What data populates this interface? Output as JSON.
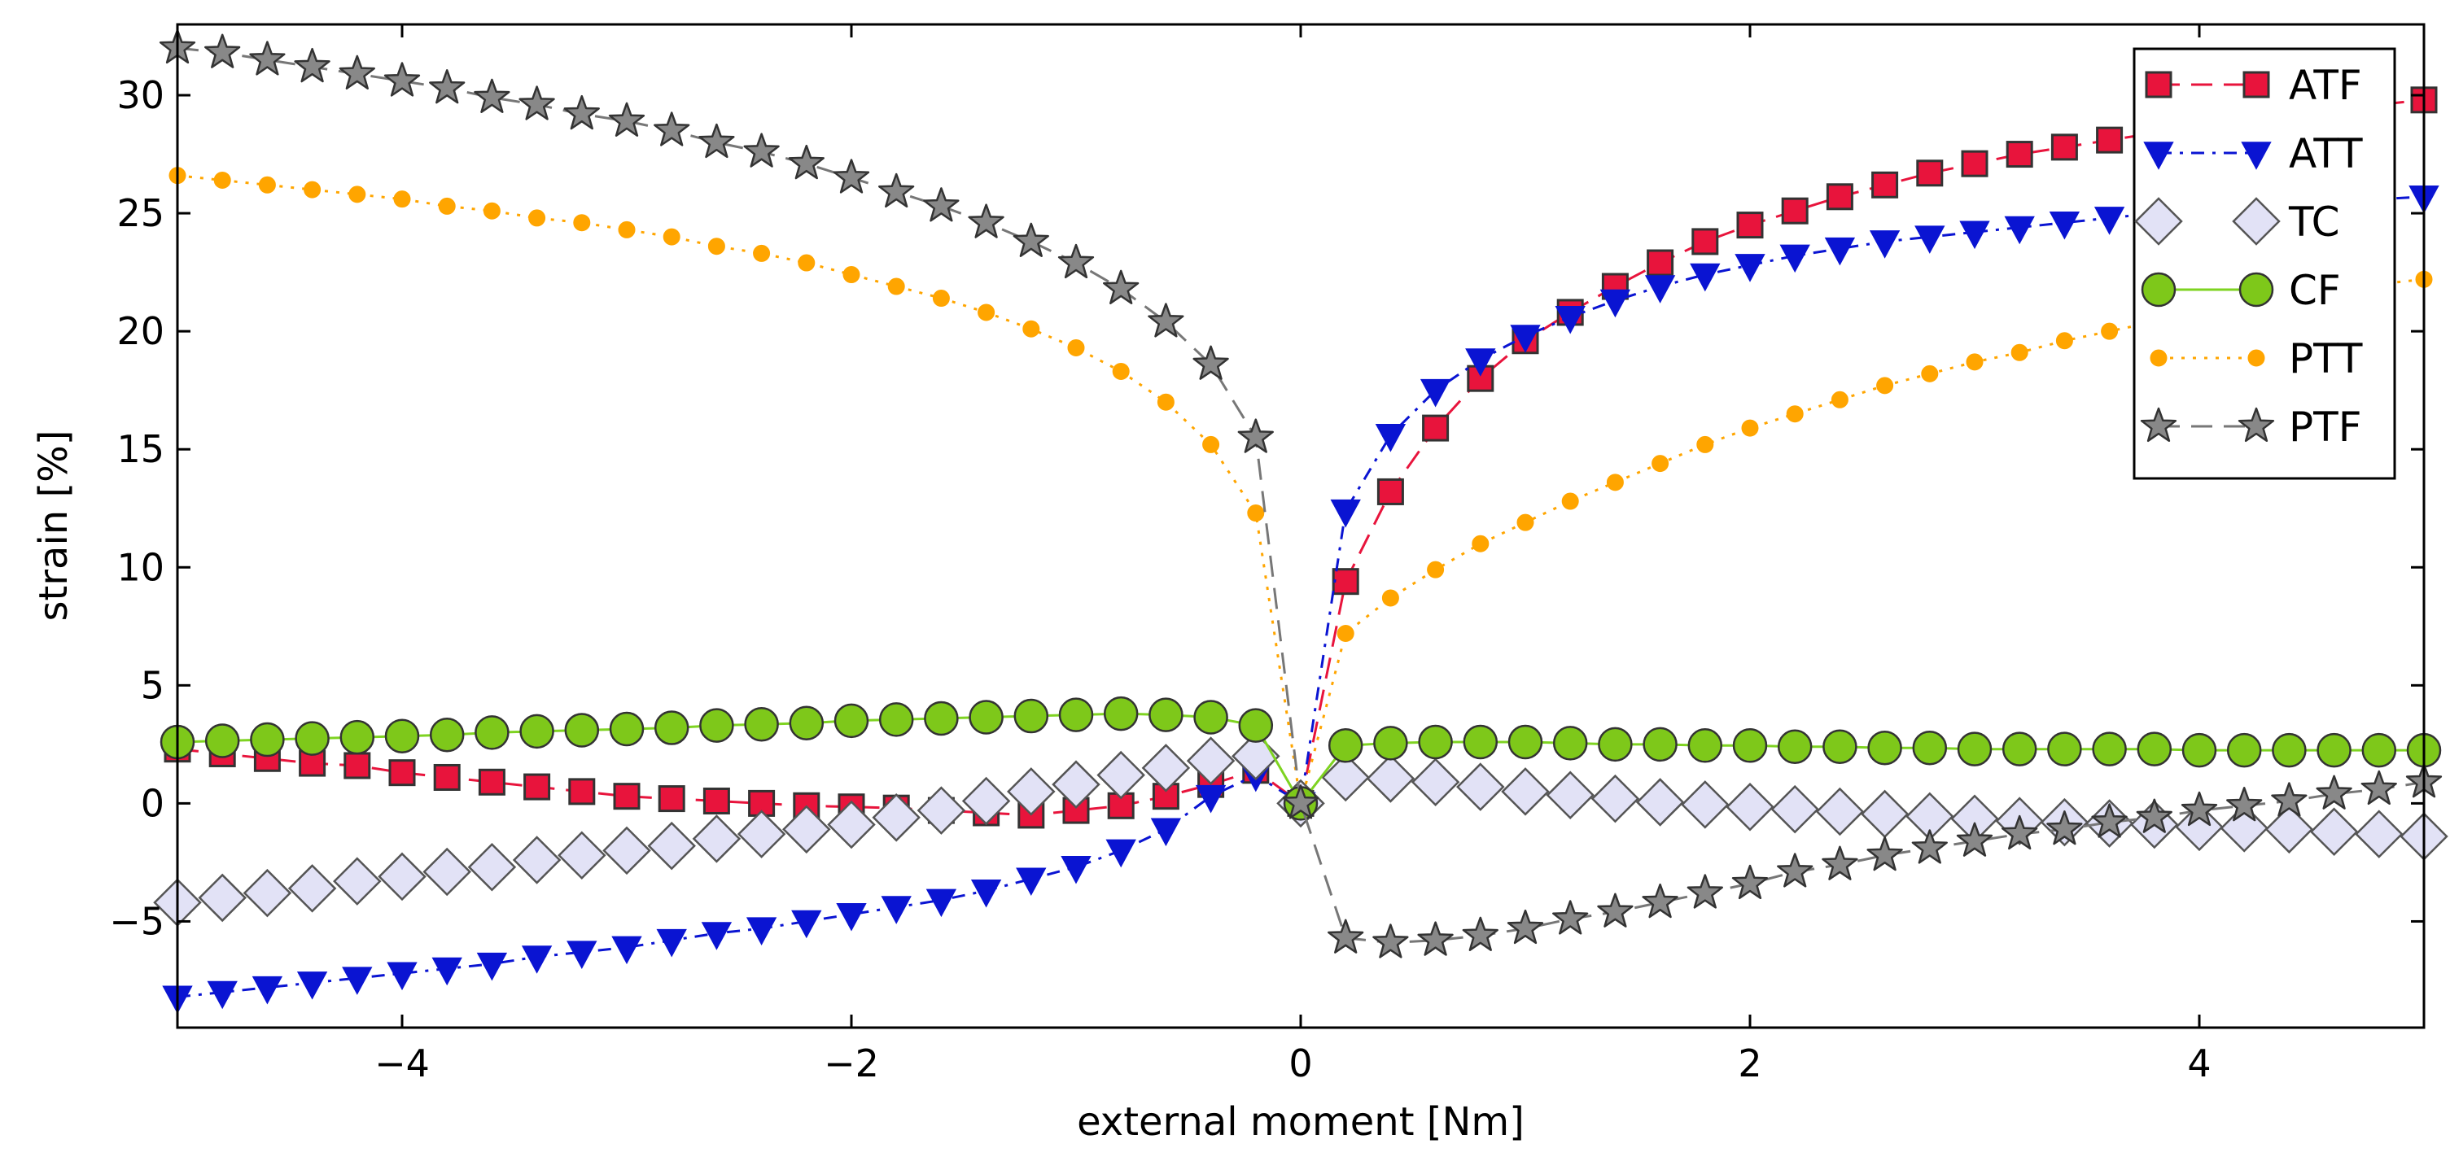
{
  "chart_data": {
    "type": "line",
    "title": "",
    "xlabel": "external moment [Nm]",
    "ylabel": "strain [%]",
    "xlim": [
      -5,
      5
    ],
    "ylim": [
      -9.5,
      33
    ],
    "x_ticks": [
      -4,
      -2,
      0,
      2,
      4
    ],
    "y_ticks": [
      -5,
      0,
      5,
      10,
      15,
      20,
      25,
      30
    ],
    "x_tick_labels": [
      "−4",
      "−2",
      "0",
      "2",
      "4"
    ],
    "y_tick_labels": [
      "−5",
      "0",
      "5",
      "10",
      "15",
      "20",
      "25",
      "30"
    ],
    "grid": false,
    "legend_position": "top-right",
    "x": [
      -5.0,
      -4.8,
      -4.6,
      -4.4,
      -4.2,
      -4.0,
      -3.8,
      -3.6,
      -3.4,
      -3.2,
      -3.0,
      -2.8,
      -2.6,
      -2.4,
      -2.2,
      -2.0,
      -1.8,
      -1.6,
      -1.4,
      -1.2,
      -1.0,
      -0.8,
      -0.6,
      -0.4,
      -0.2,
      0.0,
      0.2,
      0.4,
      0.6,
      0.8,
      1.0,
      1.2,
      1.4,
      1.6,
      1.8,
      2.0,
      2.2,
      2.4,
      2.6,
      2.8,
      3.0,
      3.2,
      3.4,
      3.6,
      3.8,
      4.0,
      4.2,
      4.4,
      4.6,
      4.8,
      5.0
    ],
    "series": [
      {
        "name": "ATF",
        "marker": "square",
        "line_style": "dashed",
        "line_color": "#e8143c",
        "marker_fill": "#e8143c",
        "marker_edge": "#333333",
        "values": [
          2.3,
          2.1,
          1.9,
          1.7,
          1.6,
          1.3,
          1.1,
          0.9,
          0.7,
          0.5,
          0.3,
          0.2,
          0.1,
          0.0,
          -0.1,
          -0.15,
          -0.2,
          -0.3,
          -0.4,
          -0.5,
          -0.3,
          -0.1,
          0.3,
          0.8,
          1.4,
          0.0,
          9.4,
          13.2,
          15.9,
          18.0,
          19.6,
          20.8,
          21.9,
          22.9,
          23.8,
          24.5,
          25.1,
          25.7,
          26.2,
          26.7,
          27.1,
          27.5,
          27.8,
          28.1,
          28.4,
          28.7,
          29.0,
          29.2,
          29.4,
          29.6,
          29.8
        ]
      },
      {
        "name": "ATT",
        "marker": "triangle-down",
        "line_style": "dashdot",
        "line_color": "#0a14d2",
        "marker_fill": "#0a14d2",
        "marker_edge": "#0a14d2",
        "values": [
          -8.2,
          -8.0,
          -7.8,
          -7.6,
          -7.4,
          -7.2,
          -7.0,
          -6.8,
          -6.5,
          -6.3,
          -6.1,
          -5.8,
          -5.5,
          -5.3,
          -5.0,
          -4.7,
          -4.4,
          -4.1,
          -3.7,
          -3.2,
          -2.7,
          -2.0,
          -1.1,
          0.3,
          1.2,
          0.0,
          12.4,
          15.6,
          17.5,
          18.8,
          19.8,
          20.6,
          21.3,
          21.9,
          22.4,
          22.8,
          23.2,
          23.5,
          23.8,
          24.0,
          24.2,
          24.4,
          24.6,
          24.8,
          25.0,
          25.1,
          25.2,
          25.4,
          25.5,
          25.6,
          25.7
        ]
      },
      {
        "name": "TC",
        "marker": "diamond",
        "line_style": "none",
        "line_color": "#8a8aa6",
        "marker_fill": "#e2e2f6",
        "marker_edge": "#555555",
        "values": [
          -4.2,
          -4.0,
          -3.8,
          -3.6,
          -3.3,
          -3.1,
          -2.9,
          -2.7,
          -2.4,
          -2.2,
          -2.0,
          -1.8,
          -1.5,
          -1.3,
          -1.1,
          -0.9,
          -0.6,
          -0.3,
          0.1,
          0.5,
          0.8,
          1.2,
          1.5,
          1.8,
          2.0,
          0.0,
          1.1,
          1.05,
          0.9,
          0.7,
          0.5,
          0.35,
          0.2,
          0.05,
          -0.05,
          -0.15,
          -0.25,
          -0.35,
          -0.45,
          -0.55,
          -0.65,
          -0.75,
          -0.8,
          -0.85,
          -0.9,
          -1.0,
          -1.05,
          -1.1,
          -1.2,
          -1.3,
          -1.4
        ]
      },
      {
        "name": "CF",
        "marker": "circle",
        "line_style": "solid",
        "line_color": "#7ed321",
        "marker_fill": "#7ec81a",
        "marker_edge": "#333333",
        "values": [
          2.6,
          2.65,
          2.7,
          2.75,
          2.8,
          2.85,
          2.9,
          3.0,
          3.05,
          3.1,
          3.15,
          3.2,
          3.3,
          3.35,
          3.4,
          3.5,
          3.55,
          3.6,
          3.65,
          3.7,
          3.75,
          3.8,
          3.75,
          3.65,
          3.3,
          0.0,
          2.45,
          2.55,
          2.6,
          2.6,
          2.6,
          2.55,
          2.5,
          2.5,
          2.45,
          2.45,
          2.4,
          2.4,
          2.35,
          2.35,
          2.3,
          2.3,
          2.3,
          2.3,
          2.3,
          2.25,
          2.25,
          2.25,
          2.25,
          2.25,
          2.25
        ]
      },
      {
        "name": "PTT",
        "marker": "small-circle",
        "line_style": "dotted",
        "line_color": "#ffa500",
        "marker_fill": "#ffa500",
        "marker_edge": "#ffa500",
        "values": [
          26.6,
          26.4,
          26.2,
          26.0,
          25.8,
          25.6,
          25.3,
          25.1,
          24.8,
          24.6,
          24.3,
          24.0,
          23.6,
          23.3,
          22.9,
          22.4,
          21.9,
          21.4,
          20.8,
          20.1,
          19.3,
          18.3,
          17.0,
          15.2,
          12.3,
          0.0,
          7.2,
          8.7,
          9.9,
          11.0,
          11.9,
          12.8,
          13.6,
          14.4,
          15.2,
          15.9,
          16.5,
          17.1,
          17.7,
          18.2,
          18.7,
          19.1,
          19.6,
          20.0,
          20.4,
          20.8,
          21.1,
          21.4,
          21.7,
          22.0,
          22.2
        ]
      },
      {
        "name": "PTF",
        "marker": "star",
        "line_style": "dashed",
        "line_color": "#777777",
        "marker_fill": "#888888",
        "marker_edge": "#333333",
        "values": [
          32.0,
          31.8,
          31.5,
          31.2,
          30.9,
          30.6,
          30.3,
          29.9,
          29.6,
          29.2,
          28.9,
          28.5,
          28.0,
          27.6,
          27.1,
          26.5,
          25.9,
          25.3,
          24.6,
          23.8,
          22.9,
          21.8,
          20.4,
          18.6,
          15.5,
          0.0,
          -5.7,
          -5.9,
          -5.8,
          -5.6,
          -5.3,
          -4.9,
          -4.6,
          -4.2,
          -3.8,
          -3.4,
          -2.9,
          -2.6,
          -2.2,
          -1.9,
          -1.6,
          -1.3,
          -1.1,
          -0.8,
          -0.6,
          -0.3,
          -0.1,
          0.1,
          0.4,
          0.6,
          0.9
        ]
      }
    ]
  }
}
